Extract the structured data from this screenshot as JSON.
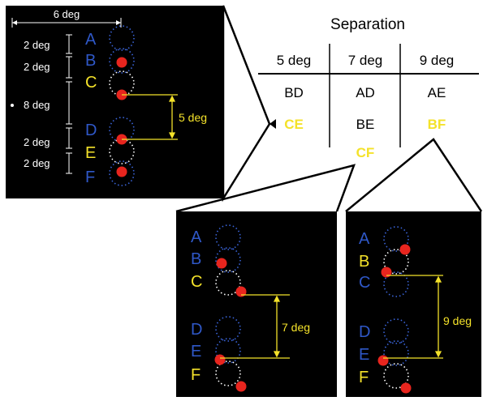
{
  "main_panel": {
    "width_label": "6 deg",
    "gap_labels": [
      "2 deg",
      "2 deg",
      "8 deg",
      "2 deg",
      "2 deg"
    ],
    "letters": [
      "A",
      "B",
      "C",
      "D",
      "E",
      "F"
    ],
    "separation_label": "5 deg"
  },
  "table": {
    "title": "Separation",
    "columns": [
      {
        "header": "5 deg",
        "cells": [
          "BD",
          "CE"
        ],
        "highlight": [
          false,
          true
        ]
      },
      {
        "header": "7 deg",
        "cells": [
          "AD",
          "BE",
          "CF"
        ],
        "highlight": [
          false,
          false,
          true
        ]
      },
      {
        "header": "9 deg",
        "cells": [
          "AE",
          "BF"
        ],
        "highlight": [
          false,
          true
        ]
      }
    ]
  },
  "panel_bottom_left": {
    "letters": [
      "A",
      "B",
      "C",
      "D",
      "E",
      "F"
    ],
    "separation_label": "7 deg"
  },
  "panel_bottom_right": {
    "letters": [
      "A",
      "B",
      "C",
      "D",
      "E",
      "F"
    ],
    "separation_label": "9 deg"
  },
  "colors": {
    "blue_letter": "#2f58c8",
    "yellow": "#f4e22a",
    "red_dot": "#e8251e",
    "dotted_blue": "#3a64d8",
    "dotted_white": "#ffffff"
  }
}
